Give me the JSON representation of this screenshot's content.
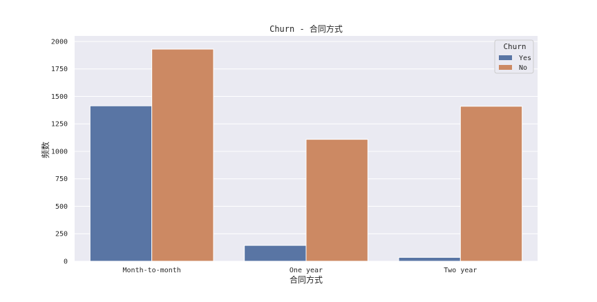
{
  "chart_data": {
    "type": "bar",
    "title": "Churn - 合同方式",
    "xlabel": "合同方式",
    "ylabel": "频数",
    "categories": [
      "Month-to-month",
      "One year",
      "Two year"
    ],
    "series": [
      {
        "name": "Yes",
        "values": [
          1414,
          144,
          35
        ],
        "color": "#5975a4"
      },
      {
        "name": "No",
        "values": [
          1930,
          1109,
          1410
        ],
        "color": "#cc8963"
      }
    ],
    "ylim": [
      0,
      2050
    ],
    "yticks": [
      0,
      250,
      500,
      750,
      1000,
      1250,
      1500,
      1750,
      2000
    ],
    "grid": true,
    "legend": {
      "title": "Churn",
      "placement": "top-right"
    },
    "colors": {
      "plot_background": "#eaeaf2",
      "grid": "#ffffff"
    }
  }
}
